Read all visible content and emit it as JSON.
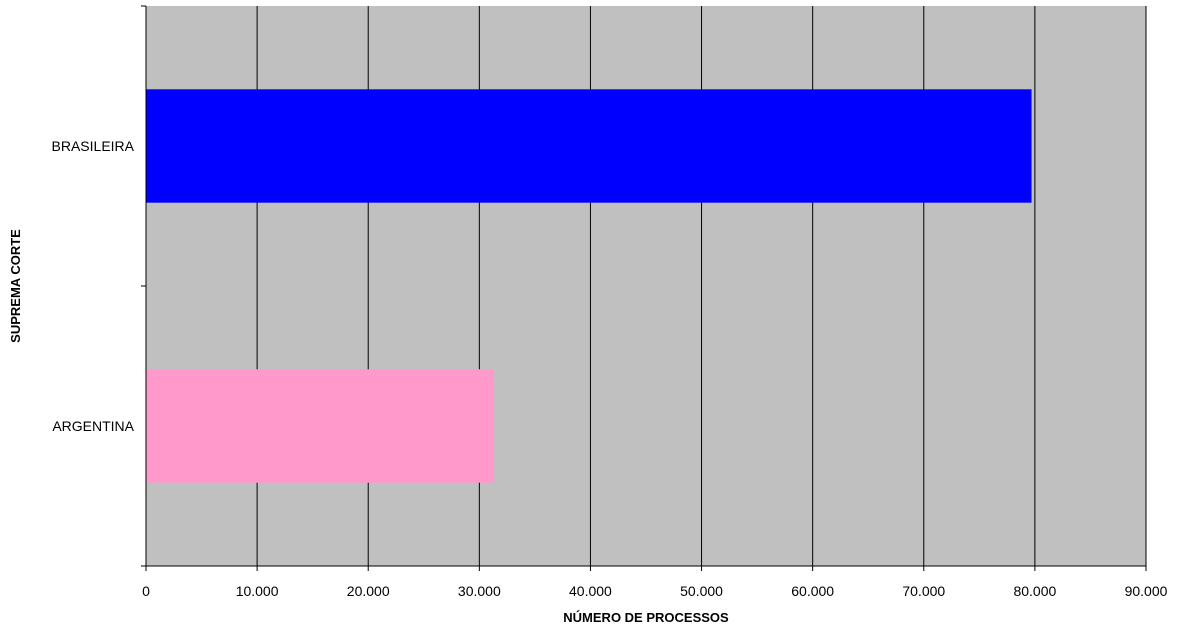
{
  "chart_data": {
    "type": "bar",
    "orientation": "horizontal",
    "categories": [
      "BRASILEIRA",
      "ARGENTINA"
    ],
    "values": [
      79700,
      31300
    ],
    "colors": [
      "#0000ff",
      "#ff99cc"
    ],
    "xlabel": "NÚMERO DE PROCESSOS",
    "ylabel": "SUPREMA CORTE",
    "xlim": [
      0,
      90000
    ],
    "xticks": [
      0,
      10000,
      20000,
      30000,
      40000,
      50000,
      60000,
      70000,
      80000,
      90000
    ],
    "xtick_labels": [
      "0",
      "10.000",
      "20.000",
      "30.000",
      "40.000",
      "50.000",
      "60.000",
      "70.000",
      "80.000",
      "90.000"
    ],
    "grid": "vertical",
    "plot_background": "#c0c0c0",
    "legend": "none"
  }
}
